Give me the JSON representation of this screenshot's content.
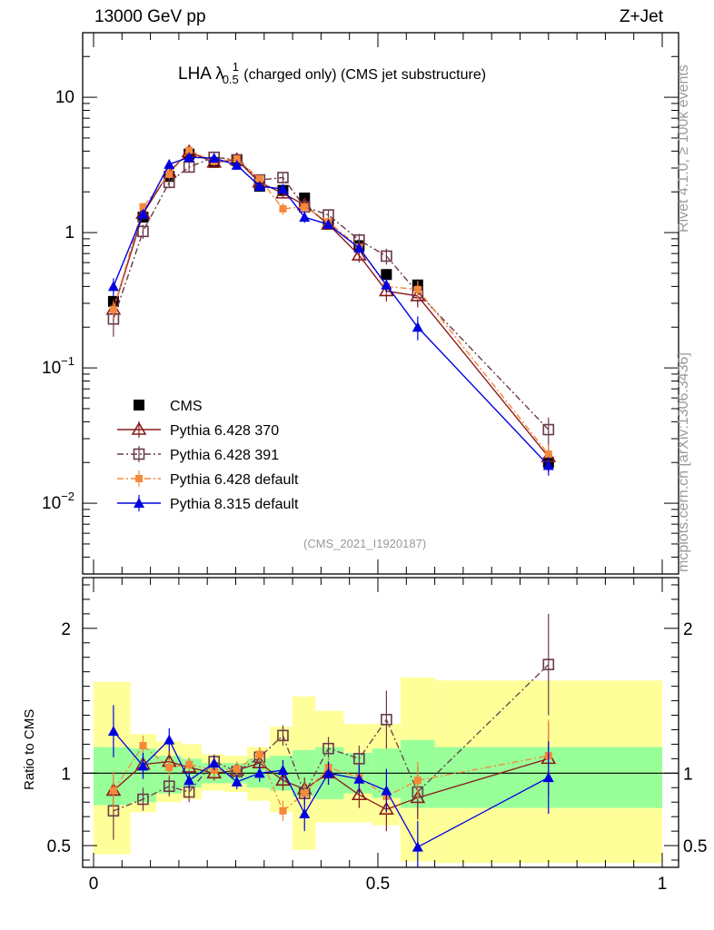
{
  "header": {
    "beam": "13000 GeV pp",
    "process": "Z+Jet"
  },
  "side_labels": {
    "rivet": "Rivet 4.1.0, ≥ 100k events",
    "mcplots": "mcplots.cern.ch [arXiv:1306.3436]"
  },
  "title": {
    "obs": "LHA λ",
    "sub": "0.5",
    "sup": "1",
    "rest": "(charged only) (CMS jet substructure)"
  },
  "analysis_id": "(CMS_2021_I1920187)",
  "ratio_ylabel": "Ratio to CMS",
  "colors": {
    "data": "#000000",
    "p370": "#8b1a1a",
    "p391": "#6b3a4a",
    "p6def": "#f5883a",
    "p8": "#0000e0",
    "band_inner": "#99ff99",
    "band_outer": "#ffff99"
  },
  "chart_data": [
    {
      "type": "scatter",
      "title": "LHA λ^1_0.5 (charged only) (CMS jet substructure)",
      "yscale": "log",
      "xlim": [
        0,
        1
      ],
      "ylim": [
        0.003,
        30
      ],
      "y_ticks": [
        {
          "v": 0.01,
          "base": "10",
          "exp": "−2"
        },
        {
          "v": 0.1,
          "base": "10",
          "exp": "−1"
        },
        {
          "v": 1,
          "base": "1",
          "exp": ""
        },
        {
          "v": 10,
          "base": "10",
          "exp": ""
        }
      ],
      "x_bins": [
        [
          0.0,
          0.065
        ],
        [
          0.065,
          0.11
        ],
        [
          0.11,
          0.155
        ],
        [
          0.155,
          0.19
        ],
        [
          0.19,
          0.23
        ],
        [
          0.23,
          0.27
        ],
        [
          0.27,
          0.31
        ],
        [
          0.31,
          0.35
        ],
        [
          0.35,
          0.39
        ],
        [
          0.39,
          0.44
        ],
        [
          0.44,
          0.49
        ],
        [
          0.49,
          0.54
        ],
        [
          0.54,
          0.6
        ],
        [
          0.6,
          1.0
        ]
      ],
      "x": [
        0.035,
        0.087,
        0.133,
        0.168,
        0.212,
        0.252,
        0.292,
        0.333,
        0.371,
        0.413,
        0.467,
        0.515,
        0.57,
        0.8
      ],
      "series": [
        {
          "name": "CMS",
          "key": "data",
          "marker": "square-filled",
          "line": "none",
          "values": [
            0.31,
            1.3,
            2.6,
            3.8,
            3.3,
            3.4,
            2.2,
            2.05,
            1.8,
            1.15,
            0.8,
            0.49,
            0.41,
            0.02
          ],
          "err": [
            0.03,
            0.08,
            0.15,
            0.2,
            0.15,
            0.15,
            0.1,
            0.1,
            0.1,
            0.06,
            0.05,
            0.03,
            0.04,
            0.003
          ]
        },
        {
          "name": "Pythia 6.428 370",
          "key": "p370",
          "marker": "triangle-open",
          "line": "solid",
          "values": [
            0.27,
            1.38,
            2.8,
            3.95,
            3.3,
            3.45,
            2.35,
            1.95,
            1.6,
            1.15,
            0.68,
            0.37,
            0.34,
            0.022
          ],
          "err": [
            0.05,
            0.12,
            0.2,
            0.25,
            0.2,
            0.2,
            0.15,
            0.15,
            0.15,
            0.1,
            0.08,
            0.06,
            0.06,
            0.005
          ]
        },
        {
          "name": "Pythia 6.428 391",
          "key": "p391",
          "marker": "square-open",
          "line": "dashdot",
          "values": [
            0.23,
            1.02,
            2.35,
            3.05,
            3.6,
            3.45,
            2.45,
            2.55,
            1.55,
            1.35,
            0.88,
            0.67,
            0.36,
            0.035
          ],
          "err": [
            0.06,
            0.12,
            0.2,
            0.25,
            0.2,
            0.2,
            0.15,
            0.2,
            0.15,
            0.1,
            0.1,
            0.09,
            0.07,
            0.008
          ]
        },
        {
          "name": "Pythia 6.428 default",
          "key": "p6def",
          "marker": "square-filled-small",
          "line": "dashdot",
          "values": [
            0.27,
            1.55,
            2.7,
            4.05,
            3.35,
            3.5,
            2.5,
            1.5,
            1.55,
            1.2,
            0.78,
            0.4,
            0.38,
            0.023
          ],
          "err": [
            0.04,
            0.1,
            0.18,
            0.2,
            0.18,
            0.18,
            0.14,
            0.15,
            0.12,
            0.1,
            0.07,
            0.05,
            0.06,
            0.004
          ]
        },
        {
          "name": "Pythia 8.315 default",
          "key": "p8",
          "marker": "triangle-filled",
          "line": "solid",
          "values": [
            0.4,
            1.37,
            3.2,
            3.6,
            3.55,
            3.15,
            2.2,
            2.1,
            1.3,
            1.15,
            0.77,
            0.41,
            0.2,
            0.019
          ],
          "err": [
            0.06,
            0.1,
            0.2,
            0.25,
            0.2,
            0.18,
            0.14,
            0.15,
            0.12,
            0.08,
            0.07,
            0.05,
            0.04,
            0.003
          ]
        }
      ]
    },
    {
      "type": "scatter",
      "title": "Ratio to CMS",
      "ylabel": "Ratio to CMS",
      "xlim": [
        0,
        1
      ],
      "ylim": [
        0.35,
        2.35
      ],
      "x_ticks": [
        {
          "v": 0,
          "label": "0"
        },
        {
          "v": 0.5,
          "label": "0.5"
        },
        {
          "v": 1,
          "label": "1"
        }
      ],
      "y_ticks": [
        {
          "v": 0.5,
          "label": "0.5"
        },
        {
          "v": 1,
          "label": "1"
        },
        {
          "v": 2,
          "label": "2"
        }
      ],
      "band_inner": [
        [
          0.78,
          1.18
        ],
        [
          0.8,
          1.17
        ],
        [
          0.86,
          1.12
        ],
        [
          0.9,
          1.1
        ],
        [
          0.93,
          1.07
        ],
        [
          0.93,
          1.07
        ],
        [
          0.9,
          1.1
        ],
        [
          0.88,
          1.12
        ],
        [
          0.84,
          1.16
        ],
        [
          0.82,
          1.18
        ],
        [
          0.86,
          1.14
        ],
        [
          0.83,
          1.17
        ],
        [
          0.76,
          1.23
        ],
        [
          0.76,
          1.18
        ]
      ],
      "band_outer": [
        [
          0.44,
          1.63
        ],
        [
          0.73,
          1.27
        ],
        [
          0.8,
          1.22
        ],
        [
          0.82,
          1.2
        ],
        [
          0.88,
          1.13
        ],
        [
          0.87,
          1.12
        ],
        [
          0.81,
          1.18
        ],
        [
          0.73,
          1.32
        ],
        [
          0.47,
          1.53
        ],
        [
          0.66,
          1.43
        ],
        [
          0.66,
          1.34
        ],
        [
          0.64,
          1.34
        ],
        [
          0.39,
          1.66
        ],
        [
          0.38,
          1.64
        ]
      ],
      "series": [
        {
          "name": "Pythia 6.428 370",
          "key": "p370",
          "values": [
            0.88,
            1.06,
            1.08,
            1.04,
            1.0,
            1.02,
            1.07,
            0.95,
            0.89,
            1.0,
            0.85,
            0.75,
            0.83,
            1.1
          ],
          "err": [
            0.12,
            0.08,
            0.07,
            0.06,
            0.05,
            0.05,
            0.06,
            0.07,
            0.08,
            0.08,
            0.09,
            0.15,
            0.15,
            0.25
          ]
        },
        {
          "name": "Pythia 6.428 391",
          "key": "p391",
          "values": [
            0.74,
            0.82,
            0.91,
            0.87,
            1.08,
            1.01,
            1.11,
            1.26,
            0.86,
            1.17,
            1.1,
            1.37,
            0.87,
            1.75
          ],
          "err": [
            0.2,
            0.08,
            0.07,
            0.07,
            0.05,
            0.05,
            0.06,
            0.07,
            0.08,
            0.08,
            0.09,
            0.2,
            0.17,
            0.35
          ]
        },
        {
          "name": "Pythia 6.428 default",
          "key": "p6def",
          "values": [
            0.88,
            1.19,
            1.04,
            1.06,
            1.02,
            1.03,
            1.13,
            0.74,
            0.86,
            1.04,
            0.97,
            0.84,
            0.95,
            1.12
          ],
          "err": [
            0.13,
            0.07,
            0.06,
            0.05,
            0.05,
            0.05,
            0.05,
            0.07,
            0.07,
            0.07,
            0.09,
            0.12,
            0.13,
            0.25
          ]
        },
        {
          "name": "Pythia 8.315 default",
          "key": "p8",
          "values": [
            1.29,
            1.05,
            1.23,
            0.95,
            1.07,
            0.94,
            1.0,
            1.02,
            0.72,
            1.0,
            0.96,
            0.88,
            0.49,
            0.97
          ],
          "err": [
            0.18,
            0.09,
            0.08,
            0.06,
            0.05,
            0.05,
            0.06,
            0.07,
            0.12,
            0.08,
            0.1,
            0.15,
            0.18,
            0.25
          ]
        }
      ]
    }
  ]
}
